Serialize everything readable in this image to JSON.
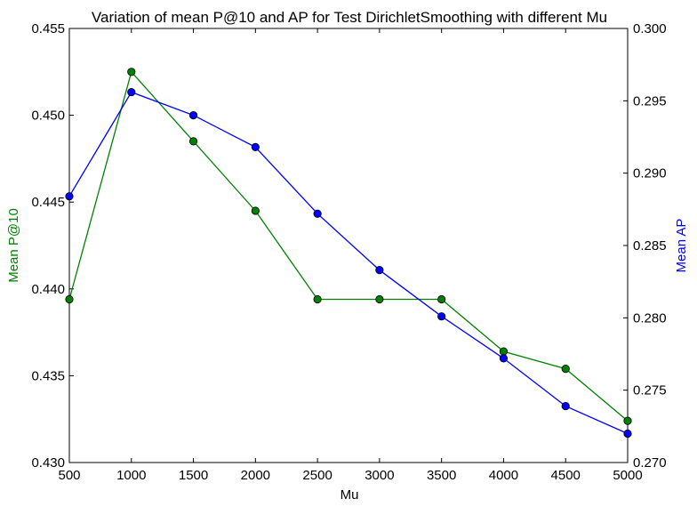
{
  "chart_data": {
    "type": "line",
    "title": "Variation of mean P@10 and AP for Test DirichletSmoothing with different Mu",
    "xlabel": "Mu",
    "ylabel_left": "Mean P@10",
    "ylabel_right": "Mean AP",
    "x": [
      500,
      1000,
      1500,
      2000,
      2500,
      3000,
      3500,
      4000,
      4500,
      5000
    ],
    "xlim": [
      500,
      5000
    ],
    "xticks": [
      "500",
      "1000",
      "1500",
      "2000",
      "2500",
      "3000",
      "3500",
      "4000",
      "4500",
      "5000"
    ],
    "ylim_left": [
      0.43,
      0.455
    ],
    "yticks_left": [
      "0.430",
      "0.435",
      "0.440",
      "0.445",
      "0.450",
      "0.455"
    ],
    "ylim_right": [
      0.27,
      0.3
    ],
    "yticks_right": [
      "0.270",
      "0.275",
      "0.280",
      "0.285",
      "0.290",
      "0.295",
      "0.300"
    ],
    "grid": false,
    "series": [
      {
        "name": "Mean P@10",
        "axis": "left",
        "color": "#008000",
        "values": [
          0.4394,
          0.4525,
          0.4485,
          0.4445,
          0.4394,
          0.4394,
          0.4394,
          0.4364,
          0.4354,
          0.4324
        ]
      },
      {
        "name": "Mean AP",
        "axis": "right",
        "color": "#0000ff",
        "values": [
          0.2884,
          0.2956,
          0.294,
          0.2918,
          0.2872,
          0.2833,
          0.2801,
          0.2772,
          0.2739,
          0.272
        ]
      }
    ]
  }
}
